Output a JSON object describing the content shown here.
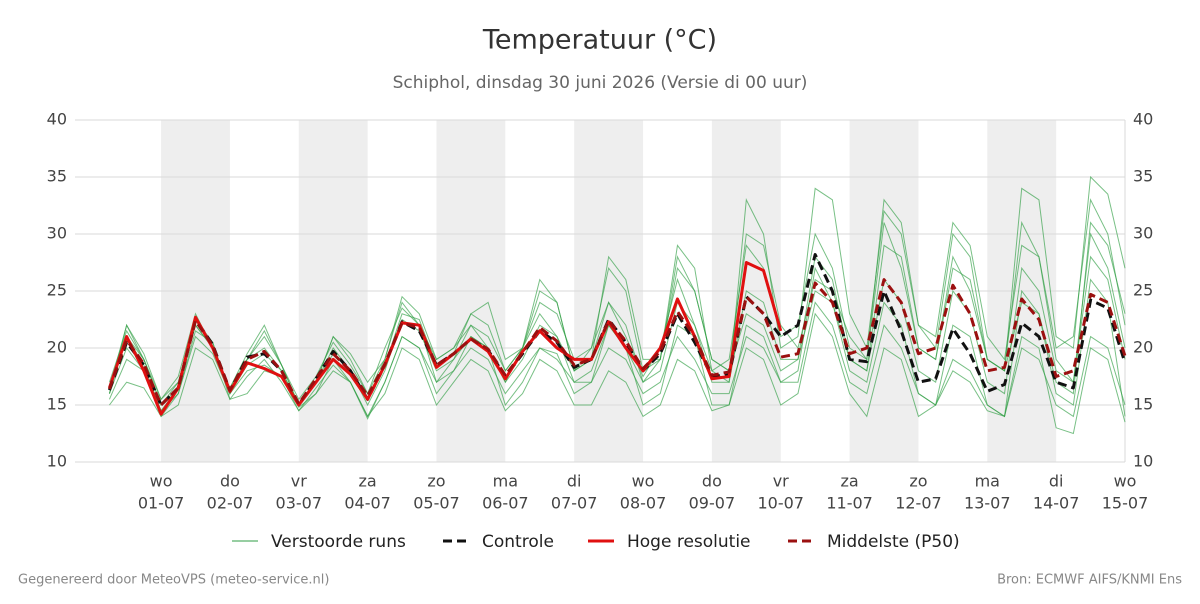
{
  "chart_data": {
    "type": "line",
    "title": "Temperatuur (°C)",
    "subtitle": "Schiphol, dinsdag 30 juni 2026 (Versie di 00 uur)",
    "footer_left": "Gegenereerd door MeteoVPS (meteo-service.nl)",
    "footer_right": "Bron: ECMWF AIFS/KNMI Ens",
    "ylim": [
      10,
      40
    ],
    "yticks": [
      10,
      15,
      20,
      25,
      30,
      35,
      40
    ],
    "grid": true,
    "legend": "bottom",
    "categories": [
      null,
      null,
      null,
      [
        "wo",
        "01-07"
      ],
      null,
      null,
      null,
      [
        "do",
        "02-07"
      ],
      null,
      null,
      null,
      [
        "vr",
        "03-07"
      ],
      null,
      null,
      null,
      [
        "za",
        "04-07"
      ],
      null,
      null,
      null,
      [
        "zo",
        "05-07"
      ],
      null,
      null,
      null,
      [
        "ma",
        "06-07"
      ],
      null,
      null,
      null,
      [
        "di",
        "07-07"
      ],
      null,
      null,
      null,
      [
        "wo",
        "08-07"
      ],
      null,
      null,
      null,
      [
        "do",
        "09-07"
      ],
      null,
      null,
      null,
      [
        "vr",
        "10-07"
      ],
      null,
      null,
      null,
      [
        "za",
        "11-07"
      ],
      null,
      null,
      null,
      [
        "zo",
        "12-07"
      ],
      null,
      null,
      null,
      [
        "ma",
        "13-07"
      ],
      null,
      null,
      null,
      [
        "di",
        "14-07"
      ],
      null,
      null,
      null,
      [
        "wo",
        "15-07"
      ]
    ],
    "series": [
      {
        "name": "Verstoorde runs",
        "color": "#2f9e44",
        "members": [
          [
            16,
            22,
            19,
            15.5,
            17,
            22,
            20,
            16,
            19,
            21,
            18.5,
            15.5,
            17.5,
            20.5,
            18.5,
            16,
            19,
            24,
            22,
            19,
            20,
            22,
            20,
            17,
            20,
            23,
            21,
            18,
            20,
            24,
            21,
            17.5,
            20,
            26,
            22,
            18,
            19,
            29,
            27,
            21,
            22,
            30,
            27,
            20,
            19,
            31,
            27,
            20,
            19,
            28,
            25,
            19,
            18,
            31,
            28,
            20,
            21,
            33,
            30,
            22
          ],
          [
            16,
            20,
            18,
            14.5,
            16,
            21,
            19.5,
            16,
            18,
            18.5,
            17.5,
            14.5,
            16.5,
            18.5,
            17,
            14,
            17,
            21,
            20,
            17,
            18,
            20,
            19,
            16,
            18,
            20,
            19,
            17,
            17,
            20,
            19,
            16,
            17,
            21,
            19,
            16,
            16,
            21,
            20,
            17,
            17,
            24,
            22,
            17,
            16,
            22,
            20,
            16,
            15,
            19,
            18,
            15,
            14,
            20,
            19,
            15,
            14,
            21,
            20,
            15
          ],
          [
            17,
            21.5,
            19,
            15,
            17,
            22.5,
            20,
            16.5,
            19.5,
            22,
            18.5,
            15,
            17,
            21,
            19,
            16,
            20,
            23.5,
            22,
            17,
            19,
            22,
            21,
            18,
            20,
            26,
            24,
            18,
            19,
            28,
            26,
            19,
            19,
            28,
            25,
            19,
            18,
            30,
            29,
            22,
            20,
            26,
            25,
            21,
            19,
            33,
            31,
            22,
            21,
            31,
            29,
            21,
            19,
            29,
            28,
            19,
            17,
            30,
            27,
            20
          ],
          [
            15.5,
            19,
            18,
            14,
            16,
            21.5,
            20.5,
            15.5,
            17.5,
            19,
            17,
            14.5,
            16,
            19,
            17,
            13.8,
            17,
            21,
            20,
            16,
            18,
            21,
            20,
            15,
            17,
            20,
            19.5,
            16,
            17,
            22,
            20,
            15,
            16,
            22,
            21,
            15,
            15,
            22,
            21,
            17,
            18,
            27,
            24,
            18,
            17,
            24,
            22,
            16,
            15,
            22,
            21,
            15,
            14,
            25,
            23,
            16,
            15,
            26,
            24,
            14
          ],
          [
            16.5,
            22,
            19.5,
            15.5,
            17.5,
            23,
            20,
            16.5,
            19,
            20,
            18,
            15,
            17,
            21,
            19.5,
            17,
            19,
            24.5,
            23,
            19,
            20,
            23,
            22,
            18,
            20,
            24,
            23,
            19,
            20,
            27,
            25,
            18,
            19,
            29,
            27,
            18,
            17,
            33,
            30,
            20,
            21,
            34,
            33,
            23,
            20,
            32,
            30,
            22,
            20,
            30,
            28,
            19,
            18,
            34,
            33,
            21,
            20,
            35,
            33.5,
            27
          ],
          [
            15,
            17,
            16.5,
            14,
            15,
            20,
            19,
            15.5,
            16,
            18,
            17.5,
            14.8,
            16,
            18,
            17,
            14,
            16,
            20,
            19,
            15,
            17,
            19,
            18,
            14.5,
            16,
            19,
            18,
            15,
            15,
            18,
            17,
            14,
            15,
            19,
            18,
            14.5,
            15,
            20,
            19,
            15,
            16,
            23,
            21,
            16,
            14,
            20,
            19,
            14,
            15,
            18,
            17,
            14.5,
            14,
            21,
            20,
            13,
            12.5,
            20,
            19,
            13.5
          ],
          [
            16,
            21,
            18.5,
            14.5,
            16.5,
            22,
            20,
            16,
            18.5,
            19.5,
            18,
            15,
            17,
            19.5,
            18,
            15,
            18,
            22.5,
            21.5,
            18,
            19,
            21,
            20,
            17,
            19,
            22,
            21,
            17,
            18,
            22,
            20,
            17,
            18,
            24,
            22,
            17,
            17,
            25,
            24,
            19,
            19,
            28,
            26,
            19,
            18,
            26,
            24,
            18,
            17,
            25,
            23,
            17,
            16,
            27,
            25,
            18,
            17,
            28,
            26,
            19
          ],
          [
            16.5,
            21,
            19,
            15,
            16.5,
            22.5,
            20.5,
            16,
            19,
            21.5,
            18.5,
            15,
            17,
            20,
            18,
            15.5,
            18.5,
            23,
            22.5,
            18.5,
            19.5,
            23,
            24,
            19,
            20,
            25,
            24,
            18,
            19,
            24,
            22,
            17,
            19,
            27,
            25,
            19,
            18,
            23,
            22,
            18,
            19,
            25,
            24,
            19,
            18,
            29,
            28,
            20,
            19,
            27,
            26,
            19,
            18,
            24,
            23,
            17,
            16,
            31,
            29,
            23
          ]
        ]
      },
      {
        "name": "Controle",
        "color": "#111111",
        "dashed": true,
        "values": [
          16.3,
          20.5,
          18.5,
          15,
          16.5,
          22.5,
          20.3,
          16.2,
          19.2,
          19.5,
          18,
          15,
          17.3,
          19.7,
          18,
          15.5,
          18.5,
          22.3,
          21.5,
          18.5,
          19.5,
          20.8,
          19.8,
          17.5,
          19.5,
          21.5,
          20.5,
          18.3,
          19,
          22.5,
          20.5,
          18,
          19.5,
          23,
          20.5,
          17.5,
          17.7,
          24.5,
          23,
          21,
          22,
          28.2,
          25,
          19,
          18.8,
          25,
          21.5,
          17,
          17.3,
          21.7,
          19.5,
          16.2,
          16.8,
          22.2,
          21,
          17,
          16.5,
          24.2,
          23.5,
          18.7
        ]
      },
      {
        "name": "Hoge resolutie",
        "color": "#e01010",
        "values": [
          16.5,
          21,
          18,
          14.2,
          16.5,
          22.7,
          20,
          16.2,
          18.7,
          18.2,
          17.5,
          15,
          17,
          19,
          17.7,
          15.5,
          18.5,
          22.2,
          22,
          18.3,
          19.5,
          20.8,
          19.7,
          17.3,
          19.7,
          21.5,
          20,
          19,
          19,
          22.3,
          20,
          18,
          20,
          24.3,
          21,
          17.3,
          17.5,
          27.5,
          26.8,
          21.5,
          null,
          null,
          null,
          null,
          null,
          null,
          null,
          null,
          null,
          null,
          null,
          null,
          null,
          null,
          null,
          null,
          null,
          null,
          null,
          null
        ]
      },
      {
        "name": "Middelste (P50)",
        "color": "#9b1010",
        "dashed": true,
        "values": [
          16.4,
          20.7,
          18.6,
          15,
          16.5,
          22.4,
          20.2,
          16.3,
          19,
          19.7,
          18,
          15.1,
          17.3,
          19.5,
          18,
          15.8,
          18.6,
          22.2,
          21.8,
          18.5,
          19.5,
          20.8,
          19.9,
          17.6,
          19.6,
          21.8,
          20.6,
          18.5,
          19,
          22.4,
          20.6,
          18.2,
          19.7,
          23.2,
          21,
          17.6,
          17.9,
          24.5,
          23,
          19.2,
          19.5,
          25.7,
          24,
          19.5,
          20,
          26,
          24,
          19.5,
          20,
          25.5,
          23,
          18,
          18.3,
          24.3,
          22.5,
          17.5,
          18,
          24.7,
          24,
          19.3
        ]
      }
    ]
  }
}
